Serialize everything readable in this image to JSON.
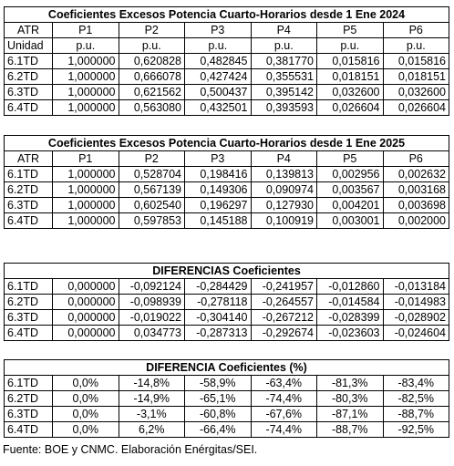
{
  "table_2024": {
    "title": "Coeficientes Excesos Potencia Cuarto-Horarios desde 1 Ene 2024",
    "header": [
      "ATR",
      "P1",
      "P2",
      "P3",
      "P4",
      "P5",
      "P6"
    ],
    "units": [
      "Unidad",
      "p.u.",
      "p.u.",
      "p.u.",
      "p.u.",
      "p.u.",
      "p.u."
    ],
    "rows": [
      [
        "6.1TD",
        "1,000000",
        "0,620828",
        "0,482845",
        "0,381770",
        "0,015816",
        "0,015816"
      ],
      [
        "6.2TD",
        "1,000000",
        "0,666078",
        "0,427424",
        "0,355531",
        "0,018151",
        "0,018151"
      ],
      [
        "6.3TD",
        "1,000000",
        "0,621562",
        "0,500437",
        "0,395142",
        "0,032600",
        "0,032600"
      ],
      [
        "6.4TD",
        "1,000000",
        "0,563080",
        "0,432501",
        "0,393593",
        "0,026604",
        "0,026604"
      ]
    ]
  },
  "table_2025": {
    "title": "Coeficientes Excesos Potencia Cuarto-Horarios desde 1 Ene 2025",
    "header": [
      "ATR",
      "P1",
      "P2",
      "P3",
      "P4",
      "P5",
      "P6"
    ],
    "rows": [
      [
        "6.1TD",
        "1,000000",
        "0,528704",
        "0,198416",
        "0,139813",
        "0,002956",
        "0,002632"
      ],
      [
        "6.2TD",
        "1,000000",
        "0,567139",
        "0,149306",
        "0,090974",
        "0,003567",
        "0,003168"
      ],
      [
        "6.3TD",
        "1,000000",
        "0,602540",
        "0,196297",
        "0,127930",
        "0,004201",
        "0,003698"
      ],
      [
        "6.4TD",
        "1,000000",
        "0,597853",
        "0,145188",
        "0,100919",
        "0,003001",
        "0,002000"
      ]
    ]
  },
  "table_diff": {
    "title": "DIFERENCIAS Coeficientes",
    "rows": [
      [
        "6.1TD",
        "0,000000",
        "-0,092124",
        "-0,284429",
        "-0,241957",
        "-0,012860",
        "-0,013184"
      ],
      [
        "6.2TD",
        "0,000000",
        "-0,098939",
        "-0,278118",
        "-0,264557",
        "-0,014584",
        "-0,014983"
      ],
      [
        "6.3TD",
        "0,000000",
        "-0,019022",
        "-0,304140",
        "-0,267212",
        "-0,028399",
        "-0,028902"
      ],
      [
        "6.4TD",
        "0,000000",
        "0,034773",
        "-0,287313",
        "-0,292674",
        "-0,023603",
        "-0,024604"
      ]
    ]
  },
  "table_pct": {
    "title": "DIFERENCIA Coeficientes (%)",
    "rows": [
      [
        "6.1TD",
        "0,0%",
        "-14,8%",
        "-58,9%",
        "-63,4%",
        "-81,3%",
        "-83,4%"
      ],
      [
        "6.2TD",
        "0,0%",
        "-14,9%",
        "-65,1%",
        "-74,4%",
        "-80,3%",
        "-82,5%"
      ],
      [
        "6.3TD",
        "0,0%",
        "-3,1%",
        "-60,8%",
        "-67,6%",
        "-87,1%",
        "-88,7%"
      ],
      [
        "6.4TD",
        "0,0%",
        "6,2%",
        "-66,4%",
        "-74,4%",
        "-88,7%",
        "-92,5%"
      ]
    ]
  },
  "source": "Fuente: BOE y CNMC. Elaboración Enérgitas/SEI."
}
